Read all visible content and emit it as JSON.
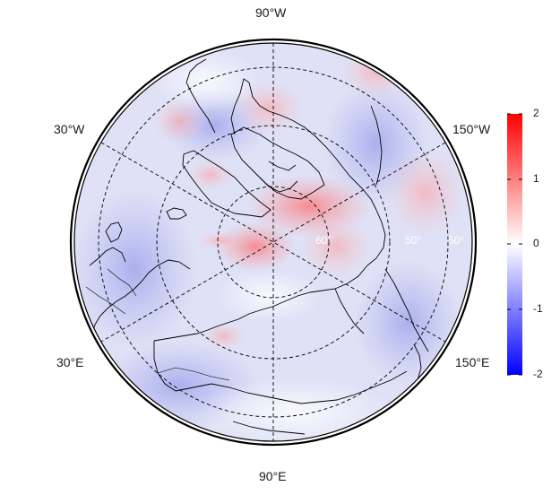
{
  "map": {
    "projection": "north polar stereographic",
    "longitude_labels": {
      "top": "90°W",
      "bottom": "90°E",
      "upper_left": "30°W",
      "upper_right": "150°W",
      "lower_left": "30°E",
      "lower_right": "150°E"
    },
    "latitude_labels": [
      "60°",
      "50°",
      "50°"
    ],
    "graticule": "dashed"
  },
  "colorbar": {
    "ticks": [
      "2",
      "1",
      "0",
      "-1",
      "-2"
    ],
    "min_color": "#0000ff",
    "mid_color": "#ffffff",
    "max_color": "#ff0000"
  },
  "colors": {
    "background": "#ffffff",
    "field_base": "#dde0f6",
    "coastline": "#000000"
  }
}
